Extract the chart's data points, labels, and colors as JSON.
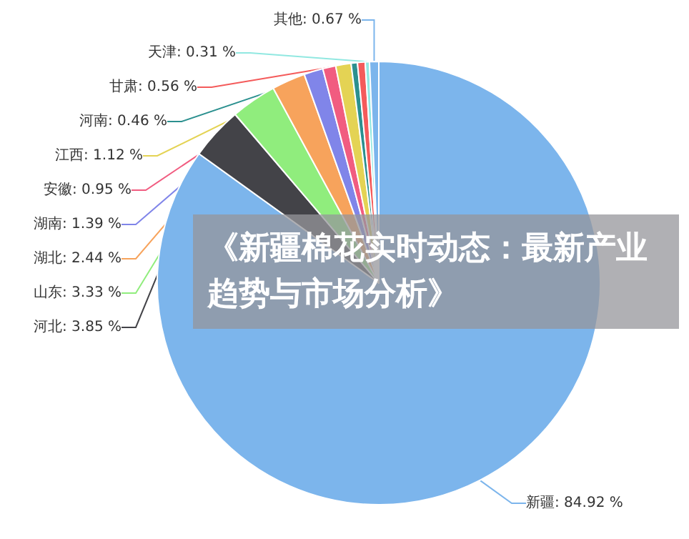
{
  "chart_data": {
    "type": "pie",
    "title": "《新疆棉花实时动态：最新产业趋势与市场分析》",
    "categories": [
      "新疆",
      "河北",
      "山东",
      "湖北",
      "湖南",
      "安徽",
      "江西",
      "河南",
      "甘肃",
      "天津",
      "其他"
    ],
    "values": [
      84.92,
      3.85,
      3.33,
      2.44,
      1.39,
      0.95,
      1.12,
      0.46,
      0.56,
      0.31,
      0.67
    ],
    "value_labels": [
      "84.92 %",
      "3.85 %",
      "3.33 %",
      "2.44 %",
      "1.39 %",
      "0.95 %",
      "1.12 %",
      "0.46 %",
      "0.56 %",
      "0.31 %",
      "0.67 %"
    ],
    "colors": [
      "#7cb5ec",
      "#434348",
      "#90ed7d",
      "#f7a35c",
      "#8085e9",
      "#f15c80",
      "#e4d354",
      "#2b908f",
      "#f45b5b",
      "#91e8e1",
      "#7cb5ec"
    ],
    "legend": false
  }
}
